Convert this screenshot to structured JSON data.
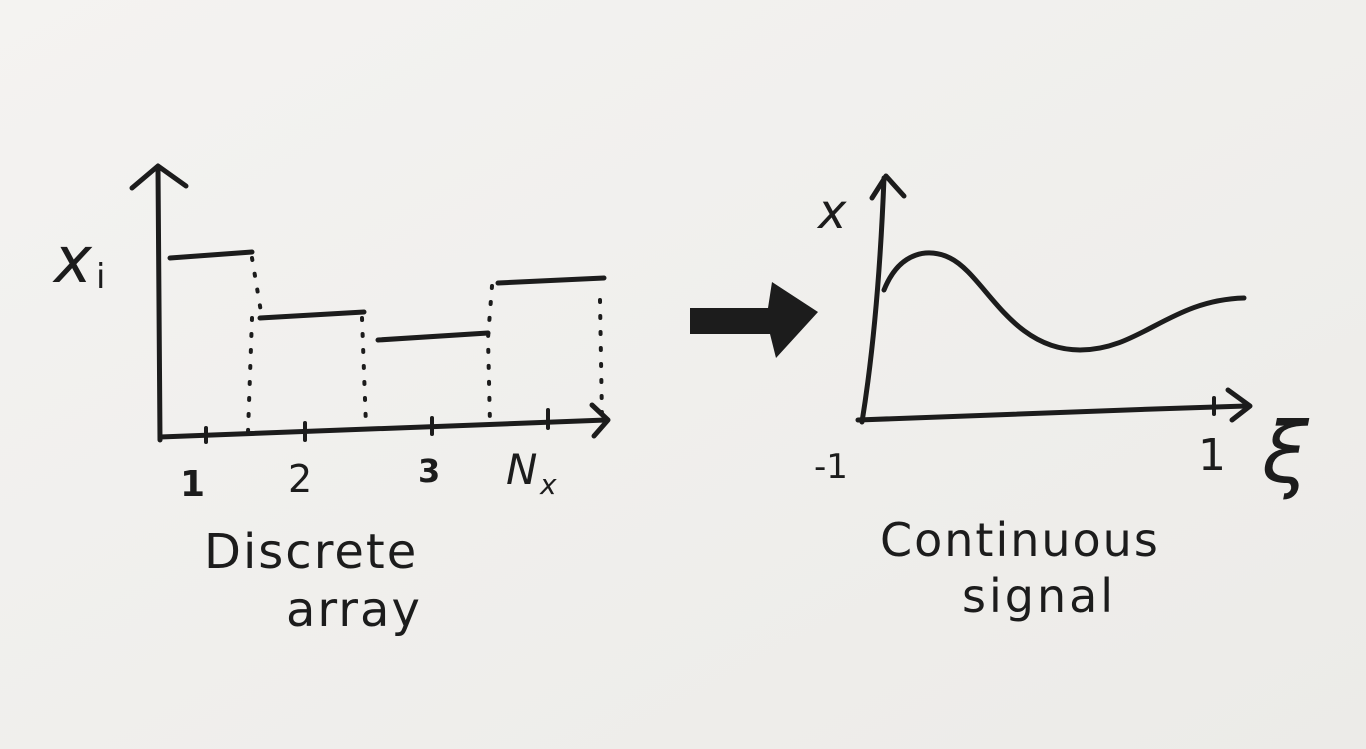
{
  "left_panel": {
    "y_label": "x",
    "y_label_subscript": "i",
    "tick_labels": [
      "1",
      "2",
      "3",
      "N"
    ],
    "last_tick_subscript": "x",
    "caption_line1": "Discrete",
    "caption_line2": "array"
  },
  "right_panel": {
    "y_label": "x",
    "x_label": "ξ",
    "x_min_label": "-1",
    "x_max_label": "1",
    "caption_line1": "Continuous",
    "caption_line2": "signal"
  },
  "colors": {
    "ink": "#1c1c1c",
    "paper": "#f2f1ef"
  },
  "arrow": {
    "icon": "right-arrow-icon"
  }
}
